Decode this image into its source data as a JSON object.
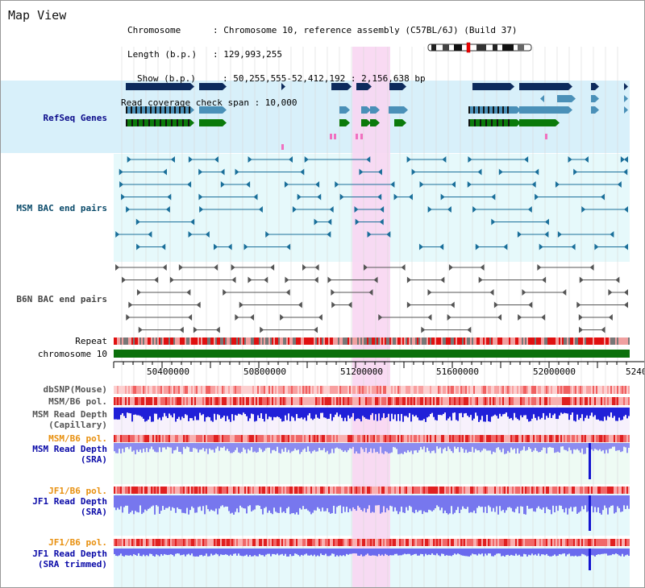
{
  "header": {
    "view_title": "Map View",
    "lines": [
      "Chromosome      : Chromosome 10, reference assembly (C57BL/6J) (Build 37)",
      "Length (b.p.)   : 129,993,255",
      "Show (b.p.)     : 50,255,555-52,412,192 : 2,156,638 bp",
      "Read coverage check span : 10,000"
    ]
  },
  "tracks": {
    "refseq": "RefSeq Genes",
    "msm_bac": "MSM BAC end pairs",
    "b6n_bac": "B6N BAC end pairs",
    "repeat": "Repeat",
    "chromosome": "chromosome 10",
    "dbsnp": "dbSNP(Mouse)",
    "msm_pol": "MSM/B6 pol.",
    "msm_depth_cap_1": "MSM Read Depth",
    "msm_depth_cap_2": "(Capillary)",
    "msm_pol2": "MSM/B6 pol.",
    "msm_depth_sra_1": "MSM Read Depth",
    "msm_depth_sra_2": "(SRA)",
    "jf1_pol": "JF1/B6 pol.",
    "jf1_depth_sra_1": "JF1 Read Depth",
    "jf1_depth_sra_2": "(SRA)",
    "jf1_pol2": "JF1/B6 pol.",
    "jf1_depth_trim_1": "JF1 Read Depth",
    "jf1_depth_trim_2": "(SRA trimmed)"
  },
  "axis": {
    "ticks": [
      "50400000",
      "50800000",
      "51200000",
      "51600000",
      "52000000",
      "5240"
    ]
  },
  "colors": {
    "navy": "#0d2a5c",
    "teal": "#4a90b8",
    "green": "#0b7a0b",
    "orange": "#e8900f",
    "darkblue": "#0a0aa8",
    "highlight": "#f8d6f2",
    "refseq_bg": "#d8f0fa",
    "msm_bg": "#e6f8fb"
  }
}
